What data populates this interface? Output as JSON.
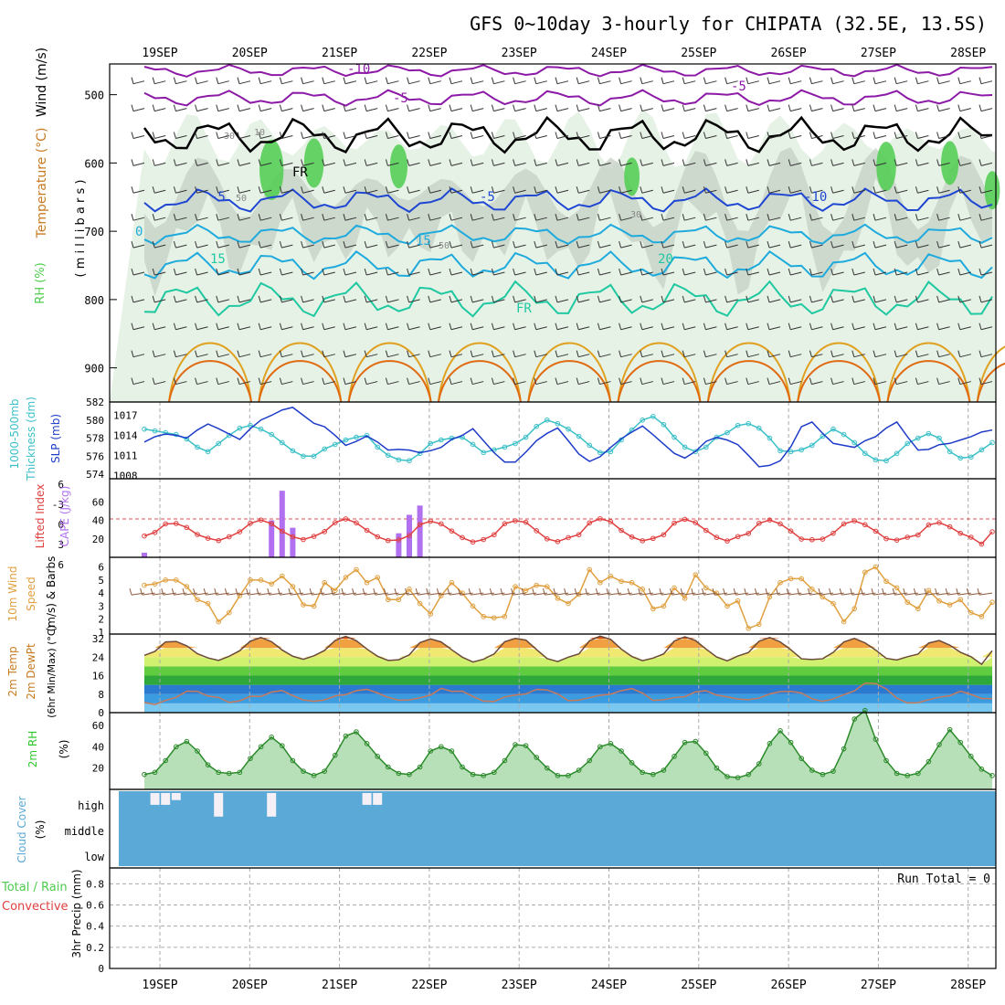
{
  "title": "GFS 0~10day 3-hourly for CHIPATA (32.5E, 13.5S)",
  "dates": [
    "19SEP",
    "20SEP",
    "21SEP",
    "22SEP",
    "23SEP",
    "24SEP",
    "25SEP",
    "26SEP",
    "27SEP",
    "28SEP"
  ],
  "colors": {
    "rh_green": "#4dcc4d",
    "rh_gray": "#c8d2c8",
    "rh_light": "#e6f2e6",
    "temp_cold": "#8c1aa6",
    "temp_blue": "#1e46d2",
    "temp_cyan": "#1eaadc",
    "temp_teal": "#1ec8a0",
    "temp_warm": "#e0a020",
    "temp_hot": "#e06a10",
    "freezing": "#000000",
    "slp": "#1e3cc8",
    "thickness": "#3cc0c8",
    "li": "#e04040",
    "cape": "#b070f0",
    "wind": "#e0a040",
    "barb": "#8c5a3c",
    "rh2m": "#2ec82e",
    "cloud_bg": "#5ba9d6",
    "cloud_bar": "#f4f0f6"
  },
  "panels": {
    "profile": {
      "ylabel_wind": "Wind (m/s)",
      "ylabel_temp": "Temperature (°C)",
      "ylabel_rh": "RH (%)",
      "ylabel_p": "( m i l l i b a r s )",
      "pressure_ticks": [
        500,
        600,
        700,
        800,
        900
      ],
      "isotherm_labels": [
        "-10",
        "-5",
        "-5",
        "-5",
        "-5",
        "-10",
        "0",
        "15",
        "15",
        "20",
        "FR",
        "FR"
      ],
      "rh_labels": [
        "30",
        "10",
        "50",
        "30",
        "50"
      ]
    },
    "pressure": {
      "ylabel_left": "Thickness (dm)",
      "ylabel_left2": "1000-500mb",
      "ylabel_right": "SLP (mb)",
      "thickness_ticks": [
        "582",
        "580",
        "578",
        "576",
        "574"
      ],
      "slp_ticks": [
        "1017",
        "1014",
        "1011",
        "1008"
      ]
    },
    "stability": {
      "ylabel_li": "Lifted Index",
      "ylabel_cape": "CAPE (J/kg)",
      "li_ticks": [
        "6",
        "-3",
        "0",
        "3",
        "6"
      ],
      "cape_ticks": [
        "60",
        "40",
        "20"
      ]
    },
    "wind10m": {
      "ylabel1": "10m Wind",
      "ylabel2": "Speed",
      "ylabel3": "(m/s) & Barbs",
      "ticks": [
        "6",
        "5",
        "4",
        "3",
        "2",
        "1"
      ]
    },
    "temp2m": {
      "ylabel1": "2m Temp",
      "ylabel2": "2m DewPt",
      "ylabel3": "(6hr Min/Max) (°C)",
      "ticks": [
        "32",
        "24",
        "16",
        "8",
        "0"
      ]
    },
    "rh2m": {
      "ylabel": "2m RH",
      "unit": "(%)",
      "ticks": [
        "60",
        "40",
        "20"
      ]
    },
    "cloud": {
      "ylabel": "Cloud Cover",
      "unit": "(%)",
      "levels": [
        "high",
        "middle",
        "low"
      ]
    },
    "precip": {
      "ylabel_total": "Total / Rain",
      "ylabel_conv": "Convective",
      "ylabel_unit": "3hr Precip (mm)",
      "run_total": "Run Total = 0",
      "ticks": [
        "0.8",
        "0.6",
        "0.4",
        "0.2",
        "0"
      ]
    }
  },
  "chart_data": {
    "type": "line",
    "x_unit": "3-hourly steps (81 steps)",
    "series": [
      {
        "name": "SLP (mb)",
        "values": [
          1013.0,
          1013.8,
          1014.2,
          1014.0,
          1013.6,
          1014.8,
          1015.7,
          1015.0,
          1014.2,
          1013.4,
          1015.0,
          1016.3,
          1017.0,
          1017.8,
          1018.2,
          1017.0,
          1015.8,
          1015.3,
          1014.0,
          1012.5,
          1013.1,
          1013.9,
          1013.0,
          1011.8,
          1011.9,
          1011.8,
          1011.4,
          1011.7,
          1012.2,
          1013.4,
          1014.0,
          1015.0,
          1013.2,
          1011.4,
          1010.0,
          1010.0,
          1011.5,
          1013.2,
          1014.3,
          1015.1,
          1013.2,
          1011.2,
          1010.1,
          1010.8,
          1012.2,
          1013.5,
          1014.5,
          1015.4,
          1014.1,
          1012.7,
          1011.3,
          1010.6,
          1011.6,
          1013.1,
          1013.7,
          1013.3,
          1012.6,
          1011.0,
          1009.3,
          1009.5,
          1010.2,
          1012.3,
          1015.3,
          1016.0,
          1014.3,
          1012.8,
          1012.5,
          1012.2,
          1013.2,
          1013.8,
          1015.1,
          1016.0,
          1013.8,
          1011.8,
          1011.9,
          1012.6,
          1012.8,
          1013.3,
          1013.8,
          1014.5,
          1014.8
        ]
      },
      {
        "name": "1000-500mb Thickness (dm)",
        "values": [
          579.0,
          578.8,
          578.6,
          578.4,
          577.9,
          577.0,
          576.5,
          577.4,
          578.3,
          579.1,
          579.4,
          579.0,
          578.4,
          577.5,
          576.6,
          576.0,
          576.0,
          576.8,
          577.3,
          577.8,
          578.1,
          578.3,
          577.0,
          576.1,
          575.6,
          575.5,
          576.3,
          577.4,
          577.8,
          578.0,
          578.1,
          577.3,
          576.4,
          576.7,
          577.0,
          577.4,
          578.1,
          579.3,
          580.0,
          579.6,
          579.0,
          578.2,
          577.2,
          576.4,
          576.5,
          577.8,
          578.9,
          580.0,
          580.4,
          579.5,
          578.1,
          577.0,
          576.5,
          577.0,
          578.1,
          578.6,
          579.4,
          579.6,
          579.1,
          578.0,
          576.6,
          576.5,
          576.7,
          577.2,
          578.2,
          579.0,
          578.4,
          577.5,
          576.3,
          575.6,
          575.5,
          576.3,
          577.4,
          578.0,
          578.5,
          578.0,
          576.5,
          575.8,
          575.9,
          576.7,
          577.5
        ]
      },
      {
        "name": "CAPE (J/kg)",
        "values": [
          5,
          0,
          0,
          0,
          0,
          0,
          0,
          0,
          0,
          0,
          0,
          0,
          40,
          72,
          32,
          0,
          0,
          0,
          0,
          0,
          0,
          0,
          0,
          0,
          26,
          46,
          56,
          0,
          0,
          0,
          0,
          0,
          0,
          0,
          0,
          0,
          0,
          0,
          0,
          0,
          0,
          0,
          0,
          0,
          0,
          0,
          0,
          0,
          0,
          0,
          0,
          0,
          0,
          0,
          0,
          0,
          0,
          0,
          0,
          0,
          0,
          0,
          0,
          0,
          0,
          0,
          0,
          0,
          0,
          0,
          0,
          0,
          0,
          0,
          0,
          0,
          0,
          0,
          0,
          0,
          0
        ]
      },
      {
        "name": "10m Wind Speed (m/s)",
        "values": [
          4.6,
          4.7,
          5.0,
          5.0,
          4.5,
          3.5,
          3.2,
          1.8,
          2.5,
          3.8,
          5.0,
          5.0,
          4.7,
          5.3,
          4.5,
          3.1,
          3.0,
          4.8,
          4.2,
          5.2,
          5.8,
          4.8,
          5.2,
          3.5,
          3.5,
          4.3,
          3.2,
          2.4,
          3.8,
          4.8,
          4.0,
          3.0,
          2.2,
          2.1,
          2.2,
          4.5,
          4.2,
          4.6,
          4.5,
          3.6,
          3.2,
          3.9,
          5.8,
          4.8,
          5.3,
          4.9,
          4.8,
          4.3,
          2.8,
          3.0,
          4.4,
          3.6,
          5.4,
          4.4,
          4.0,
          3.0,
          3.4,
          1.3,
          1.6,
          3.7,
          4.8,
          5.1,
          5.1,
          4.3,
          3.7,
          3.2,
          1.8,
          2.8,
          5.6,
          6.0,
          4.9,
          4.4,
          3.3,
          2.8,
          4.2,
          3.4,
          3.1,
          3.5,
          2.5,
          2.2,
          3.3
        ]
      },
      {
        "name": "2m Temp (C)",
        "values": [
          24.8,
          26.5,
          30.6,
          30.8,
          28.9,
          25.5,
          23.7,
          22.6,
          24.4,
          26.8,
          30.9,
          32.5,
          30.7,
          27.1,
          24.4,
          23.1,
          24.6,
          26.9,
          31.2,
          33.0,
          31.1,
          27.5,
          24.4,
          22.6,
          22.9,
          25.0,
          30.3,
          31.9,
          30.6,
          27.2,
          24.0,
          21.9,
          23.1,
          25.4,
          30.7,
          32.1,
          31.4,
          27.3,
          23.4,
          22.1,
          24.0,
          25.4,
          31.1,
          33.1,
          31.7,
          27.5,
          24.3,
          22.5,
          23.6,
          25.4,
          31.0,
          32.8,
          31.2,
          27.5,
          24.1,
          22.4,
          24.5,
          26.0,
          30.9,
          32.5,
          30.6,
          27.2,
          23.3,
          23.0,
          23.3,
          26.1,
          30.6,
          32.1,
          30.2,
          27.1,
          23.5,
          22.8,
          24.2,
          25.3,
          30.1,
          31.2,
          29.2,
          26.1,
          24.2,
          20.9,
          26.8
        ]
      },
      {
        "name": "2m DewPt (C)",
        "values": [
          4.4,
          3.5,
          5.3,
          6.6,
          9.3,
          9.2,
          7.2,
          6.6,
          4.4,
          5.1,
          7.1,
          7.0,
          8.9,
          9.6,
          7.4,
          5.5,
          4.9,
          5.5,
          7.2,
          7.8,
          9.5,
          10.1,
          8.5,
          6.6,
          5.4,
          5.5,
          6.4,
          7.6,
          10.5,
          9.2,
          9.3,
          7.0,
          5.0,
          4.8,
          6.8,
          7.6,
          8.1,
          10.1,
          9.8,
          8.1,
          5.2,
          5.4,
          6.5,
          7.5,
          8.0,
          9.5,
          10.4,
          8.5,
          5.3,
          5.6,
          6.5,
          6.9,
          9.0,
          9.5,
          7.6,
          6.8,
          5.9,
          5.6,
          6.3,
          8.1,
          9.1,
          9.2,
          8.5,
          6.0,
          4.9,
          5.9,
          7.8,
          9.4,
          12.8,
          12.6,
          10.3,
          6.3,
          4.2,
          4.3,
          5.6,
          6.7,
          7.3,
          9.3,
          7.9,
          6.1,
          6.1
        ]
      },
      {
        "name": "2m RH (%)",
        "values": [
          14,
          16,
          27,
          40,
          45,
          36,
          23,
          16,
          15,
          16,
          29,
          40,
          49,
          41,
          27,
          17,
          13,
          17,
          32,
          50,
          54,
          43,
          31,
          21,
          15,
          14,
          21,
          36,
          40,
          36,
          21,
          14,
          13,
          16,
          27,
          42,
          41,
          30,
          20,
          13,
          13,
          18,
          27,
          40,
          43,
          36,
          25,
          16,
          14,
          18,
          31,
          44,
          45,
          34,
          20,
          12,
          11,
          14,
          24,
          43,
          55,
          44,
          29,
          18,
          14,
          17,
          38,
          66,
          74,
          47,
          27,
          15,
          13,
          15,
          26,
          42,
          56,
          44,
          31,
          19,
          13
        ]
      },
      {
        "name": "3hr Precip (mm)",
        "values": [
          0,
          0,
          0,
          0,
          0,
          0,
          0,
          0,
          0,
          0,
          0,
          0,
          0,
          0,
          0,
          0,
          0,
          0,
          0,
          0,
          0,
          0,
          0,
          0,
          0,
          0,
          0,
          0,
          0,
          0,
          0,
          0,
          0,
          0,
          0,
          0,
          0,
          0,
          0,
          0,
          0,
          0,
          0,
          0,
          0,
          0,
          0,
          0,
          0,
          0,
          0,
          0,
          0,
          0,
          0,
          0,
          0,
          0,
          0,
          0,
          0,
          0,
          0,
          0,
          0,
          0,
          0,
          0,
          0,
          0,
          0,
          0,
          0,
          0,
          0,
          0,
          0,
          0,
          0,
          0,
          0
        ]
      }
    ],
    "high_cloud_pct": [
      0,
      50,
      50,
      30,
      0,
      0,
      0,
      100,
      0,
      0,
      0,
      0,
      100,
      0,
      0,
      0,
      0,
      0,
      0,
      0,
      0,
      50,
      50,
      0,
      0,
      0,
      0,
      0,
      0,
      0,
      0,
      0,
      0,
      0,
      0,
      0,
      0,
      0,
      0,
      0,
      0,
      0,
      0,
      0,
      0,
      0,
      0,
      0,
      0,
      0,
      0,
      0,
      0,
      0,
      0,
      0,
      0,
      0,
      0,
      0,
      0,
      0,
      0,
      0,
      0,
      0,
      0,
      0,
      0,
      0,
      0,
      0,
      0,
      0,
      0,
      0,
      0,
      0,
      0,
      0,
      0
    ],
    "mid_cloud_pct": [
      0,
      0,
      0,
      0,
      0,
      0,
      0,
      0,
      0,
      0,
      0,
      0,
      0,
      0,
      0,
      0,
      0,
      0,
      0,
      0,
      0,
      0,
      0,
      0,
      0,
      0,
      0,
      0,
      0,
      0,
      0,
      0,
      0,
      0,
      0,
      0,
      0,
      0,
      0,
      0,
      0,
      0,
      0,
      0,
      0,
      0,
      0,
      0,
      0,
      0,
      0,
      0,
      0,
      0,
      0,
      0,
      0,
      0,
      0,
      0,
      0,
      0,
      0,
      0,
      0,
      0,
      0,
      0,
      0,
      0,
      0,
      0,
      0,
      0,
      0,
      0,
      0,
      0,
      0,
      0,
      0
    ],
    "ylim_slp": [
      1007.5,
      1019
    ],
    "ylim_thickness": [
      573.5,
      582
    ],
    "ylim_wind": [
      1,
      6.6
    ],
    "ylim_temp": [
      0,
      34
    ],
    "ylim_rh": [
      0,
      72
    ],
    "ylim_precip": [
      0,
      0.95
    ]
  }
}
